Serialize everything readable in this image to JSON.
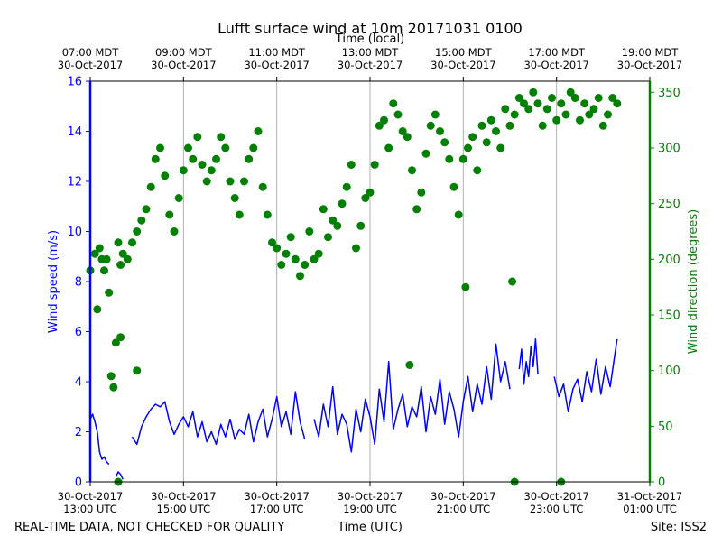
{
  "chart_data": {
    "type": "line",
    "title": "Lufft surface wind at 10m 20171031 0100",
    "top_axis_label": "Time (local)",
    "xlabel": "Time (UTC)",
    "ylabel_left": "Wind speed (m/s)",
    "ylabel_right": "Wind direction (degrees)",
    "footer_left": "REAL-TIME DATA, NOT CHECKED FOR QUALITY",
    "footer_right": "Site: ISS2",
    "colors": {
      "speed": "#0000ff",
      "direction": "#008000",
      "grid": "#b0b0b0",
      "axis": "#000000"
    },
    "x_range_hours": [
      13,
      25
    ],
    "ylim_left": [
      0,
      16
    ],
    "ylim_right": [
      0,
      360
    ],
    "left_ticks": [
      0,
      2,
      4,
      6,
      8,
      10,
      12,
      14,
      16
    ],
    "right_ticks": [
      0,
      50,
      100,
      150,
      200,
      250,
      300,
      350
    ],
    "bottom_ticks": [
      {
        "hour": 13,
        "date": "30-Oct-2017",
        "time": "13:00 UTC"
      },
      {
        "hour": 15,
        "date": "30-Oct-2017",
        "time": "15:00 UTC"
      },
      {
        "hour": 17,
        "date": "30-Oct-2017",
        "time": "17:00 UTC"
      },
      {
        "hour": 19,
        "date": "30-Oct-2017",
        "time": "19:00 UTC"
      },
      {
        "hour": 21,
        "date": "30-Oct-2017",
        "time": "21:00 UTC"
      },
      {
        "hour": 23,
        "date": "30-Oct-2017",
        "time": "23:00 UTC"
      },
      {
        "hour": 25,
        "date": "31-Oct-2017",
        "time": "01:00 UTC"
      }
    ],
    "top_ticks": [
      {
        "hour": 13,
        "time": "07:00 MDT",
        "date": "30-Oct-2017"
      },
      {
        "hour": 15,
        "time": "09:00 MDT",
        "date": "30-Oct-2017"
      },
      {
        "hour": 17,
        "time": "11:00 MDT",
        "date": "30-Oct-2017"
      },
      {
        "hour": 19,
        "time": "13:00 MDT",
        "date": "30-Oct-2017"
      },
      {
        "hour": 21,
        "time": "15:00 MDT",
        "date": "30-Oct-2017"
      },
      {
        "hour": 23,
        "time": "17:00 MDT",
        "date": "30-Oct-2017"
      },
      {
        "hour": 25,
        "time": "19:00 MDT",
        "date": "30-Oct-2017"
      }
    ],
    "series": [
      {
        "name": "Wind speed",
        "axis": "left",
        "style": "line",
        "segments": [
          {
            "x": [
              13.0,
              13.05,
              13.1,
              13.15,
              13.2,
              13.25,
              13.3,
              13.35,
              13.4
            ],
            "y": [
              2.5,
              2.7,
              2.4,
              2.0,
              1.2,
              0.9,
              1.0,
              0.8,
              0.7
            ]
          },
          {
            "x": [
              13.55,
              13.6,
              13.65,
              13.7
            ],
            "y": [
              0.2,
              0.4,
              0.3,
              0.1
            ]
          },
          {
            "x": [
              13.9,
              14.0,
              14.1,
              14.2,
              14.3,
              14.4,
              14.5,
              14.6,
              14.7,
              14.8,
              14.9,
              15.0,
              15.1,
              15.2,
              15.3,
              15.4,
              15.5,
              15.6,
              15.7,
              15.8,
              15.9,
              16.0,
              16.1,
              16.2,
              16.3,
              16.4,
              16.5,
              16.6,
              16.7,
              16.8,
              16.9,
              17.0,
              17.1,
              17.2,
              17.3,
              17.4,
              17.5,
              17.6
            ],
            "y": [
              1.8,
              1.5,
              2.2,
              2.6,
              2.9,
              3.1,
              3.0,
              3.2,
              2.4,
              1.9,
              2.3,
              2.6,
              2.2,
              2.8,
              1.8,
              2.4,
              1.6,
              2.0,
              1.5,
              2.3,
              1.8,
              2.5,
              1.7,
              2.1,
              1.9,
              2.7,
              1.6,
              2.4,
              2.9,
              1.8,
              2.5,
              3.4,
              2.2,
              2.8,
              1.9,
              3.6,
              2.4,
              1.7
            ]
          },
          {
            "x": [
              17.8,
              17.9,
              18.0,
              18.1,
              18.2,
              18.3,
              18.4,
              18.5,
              18.6,
              18.7,
              18.8,
              18.9,
              19.0,
              19.1,
              19.2,
              19.3,
              19.4,
              19.5,
              19.6,
              19.7,
              19.8,
              19.9,
              20.0,
              20.1,
              20.2,
              20.3,
              20.4,
              20.5,
              20.6,
              20.7,
              20.8,
              20.9,
              21.0,
              21.1,
              21.2,
              21.3,
              21.4,
              21.5,
              21.6,
              21.7,
              21.8,
              21.9,
              22.0
            ],
            "y": [
              2.5,
              1.8,
              3.1,
              2.2,
              3.8,
              1.9,
              2.7,
              2.3,
              1.2,
              2.9,
              2.0,
              3.3,
              2.6,
              1.5,
              3.7,
              2.4,
              4.8,
              2.1,
              2.9,
              3.5,
              2.2,
              3.0,
              2.6,
              3.8,
              2.0,
              3.4,
              2.7,
              4.1,
              2.3,
              3.6,
              2.9,
              1.8,
              3.2,
              4.2,
              2.8,
              3.9,
              3.1,
              4.6,
              3.3,
              5.5,
              4.0,
              4.8,
              3.7
            ]
          },
          {
            "x": [
              22.2,
              22.25,
              22.3,
              22.35,
              22.4,
              22.45,
              22.5,
              22.55,
              22.6
            ],
            "y": [
              4.5,
              5.3,
              3.9,
              4.8,
              4.2,
              5.4,
              4.6,
              5.7,
              4.3
            ]
          },
          {
            "x": [
              22.95,
              23.05,
              23.15,
              23.25,
              23.35,
              23.45,
              23.55,
              23.65,
              23.75,
              23.85,
              23.95,
              24.05,
              24.15,
              24.25,
              24.3
            ],
            "y": [
              4.2,
              3.4,
              3.9,
              2.8,
              3.7,
              4.1,
              3.2,
              4.4,
              3.6,
              4.9,
              3.5,
              4.6,
              3.8,
              5.1,
              5.7
            ]
          }
        ]
      },
      {
        "name": "Wind direction",
        "axis": "right",
        "style": "points",
        "x": [
          13.0,
          13.1,
          13.15,
          13.2,
          13.25,
          13.3,
          13.35,
          13.4,
          13.45,
          13.5,
          13.55,
          13.6,
          13.65,
          13.7,
          13.8,
          13.9,
          14.0,
          14.1,
          14.2,
          14.3,
          14.4,
          14.5,
          14.6,
          14.7,
          14.8,
          14.9,
          15.0,
          15.1,
          15.2,
          15.3,
          15.4,
          15.5,
          15.6,
          15.7,
          15.8,
          15.9,
          16.0,
          16.1,
          16.2,
          16.3,
          16.4,
          16.5,
          16.6,
          16.7,
          16.8,
          16.9,
          17.0,
          17.1,
          17.2,
          17.3,
          17.4,
          17.5,
          17.6,
          17.7,
          17.8,
          17.9,
          18.0,
          18.1,
          18.2,
          18.3,
          18.4,
          18.5,
          18.6,
          18.7,
          18.8,
          18.9,
          19.0,
          19.1,
          19.2,
          19.3,
          19.4,
          19.5,
          19.6,
          19.7,
          19.8,
          19.9,
          20.0,
          20.1,
          20.2,
          20.3,
          20.4,
          20.5,
          20.6,
          20.7,
          20.8,
          20.9,
          21.0,
          21.1,
          21.2,
          21.3,
          21.4,
          21.5,
          21.6,
          21.7,
          21.8,
          21.9,
          22.0,
          22.1,
          22.2,
          22.3,
          22.4,
          22.5,
          22.6,
          22.7,
          22.8,
          22.9,
          23.0,
          23.1,
          23.2,
          23.3,
          23.4,
          23.5,
          23.6,
          23.7,
          23.8,
          23.9,
          24.0,
          24.1,
          24.2,
          24.3,
          13.6,
          13.65,
          14.0,
          19.85,
          21.05,
          22.05,
          22.1,
          23.1
        ],
        "y": [
          190,
          205,
          155,
          210,
          200,
          190,
          200,
          170,
          95,
          85,
          125,
          215,
          195,
          205,
          200,
          215,
          225,
          235,
          245,
          265,
          290,
          300,
          275,
          240,
          225,
          255,
          280,
          300,
          290,
          310,
          285,
          270,
          280,
          290,
          310,
          300,
          270,
          255,
          240,
          270,
          290,
          300,
          315,
          265,
          240,
          215,
          210,
          195,
          205,
          220,
          200,
          185,
          195,
          225,
          200,
          205,
          245,
          220,
          235,
          230,
          250,
          265,
          285,
          210,
          230,
          255,
          260,
          285,
          320,
          325,
          300,
          340,
          330,
          315,
          310,
          280,
          245,
          260,
          295,
          320,
          330,
          315,
          305,
          290,
          265,
          240,
          290,
          300,
          310,
          280,
          320,
          305,
          325,
          315,
          300,
          335,
          320,
          330,
          345,
          340,
          335,
          350,
          340,
          320,
          335,
          345,
          325,
          340,
          330,
          350,
          345,
          325,
          340,
          330,
          335,
          345,
          320,
          330,
          345,
          340,
          0,
          130,
          100,
          105,
          175,
          180,
          0,
          0
        ]
      }
    ]
  }
}
